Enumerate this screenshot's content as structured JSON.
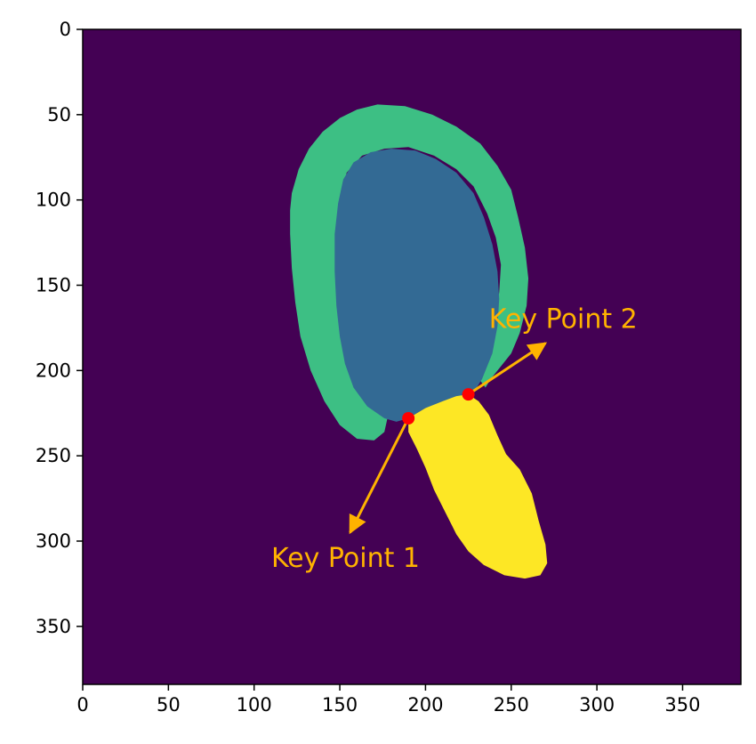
{
  "chart_data": {
    "type": "heatmap",
    "title": "",
    "xlabel": "",
    "ylabel": "",
    "xlim": [
      0,
      384
    ],
    "ylim": [
      384,
      0
    ],
    "x_ticks": [
      0,
      50,
      100,
      150,
      200,
      250,
      300,
      350
    ],
    "y_ticks": [
      0,
      50,
      100,
      150,
      200,
      250,
      300,
      350
    ],
    "x_tick_labels": [
      "0",
      "50",
      "100",
      "150",
      "200",
      "250",
      "300",
      "350"
    ],
    "y_tick_labels": [
      "0",
      "50",
      "100",
      "150",
      "200",
      "250",
      "300",
      "350"
    ],
    "grid": false,
    "colormap": "viridis",
    "colors": {
      "background": "#440154",
      "outer_band": "#3dbf84",
      "inner_region": "#336a94",
      "lower_region": "#fde725",
      "keypoint_marker": "#ff0000",
      "annotation": "#ffb300"
    },
    "regions": [
      {
        "name": "background",
        "class_value": 0,
        "color": "#440154"
      },
      {
        "name": "outer_band",
        "class_value": 2,
        "color": "#3dbf84",
        "outline": [
          [
            122,
            96
          ],
          [
            126,
            82
          ],
          [
            132,
            70
          ],
          [
            140,
            60
          ],
          [
            150,
            52
          ],
          [
            160,
            47
          ],
          [
            172,
            44
          ],
          [
            188,
            45
          ],
          [
            204,
            50
          ],
          [
            218,
            57
          ],
          [
            232,
            67
          ],
          [
            242,
            80
          ],
          [
            250,
            94
          ],
          [
            254,
            110
          ],
          [
            258,
            128
          ],
          [
            260,
            146
          ],
          [
            259,
            162
          ],
          [
            255,
            178
          ],
          [
            250,
            190
          ],
          [
            242,
            200
          ],
          [
            238,
            205
          ],
          [
            235,
            210
          ],
          [
            232,
            206
          ],
          [
            233,
            196
          ],
          [
            237,
            184
          ],
          [
            241,
            170
          ],
          [
            243,
            154
          ],
          [
            244,
            138
          ],
          [
            241,
            122
          ],
          [
            236,
            108
          ],
          [
            228,
            92
          ],
          [
            218,
            82
          ],
          [
            205,
            74
          ],
          [
            190,
            69
          ],
          [
            176,
            70
          ],
          [
            163,
            74
          ],
          [
            154,
            84
          ],
          [
            150,
            100
          ],
          [
            148,
            118
          ],
          [
            148,
            140
          ],
          [
            149,
            162
          ],
          [
            151,
            182
          ],
          [
            155,
            200
          ],
          [
            163,
            214
          ],
          [
            172,
            222
          ],
          [
            178,
            227
          ],
          [
            176,
            236
          ],
          [
            170,
            241
          ],
          [
            160,
            240
          ],
          [
            150,
            232
          ],
          [
            141,
            218
          ],
          [
            133,
            200
          ],
          [
            127,
            180
          ],
          [
            124,
            160
          ],
          [
            122,
            140
          ],
          [
            121,
            120
          ],
          [
            121,
            106
          ]
        ]
      },
      {
        "name": "inner_region",
        "class_value": 1,
        "color": "#336a94",
        "outline": [
          [
            149,
            102
          ],
          [
            152,
            88
          ],
          [
            158,
            78
          ],
          [
            168,
            72
          ],
          [
            180,
            70
          ],
          [
            194,
            71
          ],
          [
            206,
            76
          ],
          [
            218,
            84
          ],
          [
            228,
            96
          ],
          [
            234,
            110
          ],
          [
            239,
            126
          ],
          [
            242,
            142
          ],
          [
            243,
            158
          ],
          [
            242,
            174
          ],
          [
            239,
            190
          ],
          [
            233,
            205
          ],
          [
            228,
            213
          ],
          [
            219,
            218
          ],
          [
            210,
            219
          ],
          [
            200,
            222
          ],
          [
            190,
            228
          ],
          [
            183,
            230
          ],
          [
            176,
            228
          ],
          [
            166,
            221
          ],
          [
            158,
            210
          ],
          [
            153,
            196
          ],
          [
            150,
            180
          ],
          [
            148,
            162
          ],
          [
            147,
            142
          ],
          [
            147,
            120
          ]
        ]
      },
      {
        "name": "lower_region",
        "class_value": 3,
        "color": "#fde725",
        "outline": [
          [
            190,
            228
          ],
          [
            200,
            222
          ],
          [
            210,
            218
          ],
          [
            218,
            215
          ],
          [
            225,
            214
          ],
          [
            231,
            218
          ],
          [
            237,
            226
          ],
          [
            242,
            238
          ],
          [
            247,
            249
          ],
          [
            255,
            258
          ],
          [
            262,
            272
          ],
          [
            266,
            288
          ],
          [
            270,
            302
          ],
          [
            271,
            313
          ],
          [
            267,
            320
          ],
          [
            258,
            322
          ],
          [
            246,
            320
          ],
          [
            234,
            314
          ],
          [
            225,
            306
          ],
          [
            218,
            296
          ],
          [
            212,
            284
          ],
          [
            205,
            270
          ],
          [
            200,
            257
          ],
          [
            195,
            246
          ],
          [
            190,
            236
          ]
        ]
      }
    ],
    "keypoints": [
      {
        "label": "Key Point 1",
        "x": 190,
        "y": 228,
        "arrow_tip": [
          156,
          295
        ],
        "label_position": [
          110,
          315
        ]
      },
      {
        "label": "Key Point 2",
        "x": 225,
        "y": 214,
        "arrow_tip": [
          270,
          184
        ],
        "label_position": [
          237,
          175
        ]
      }
    ]
  }
}
